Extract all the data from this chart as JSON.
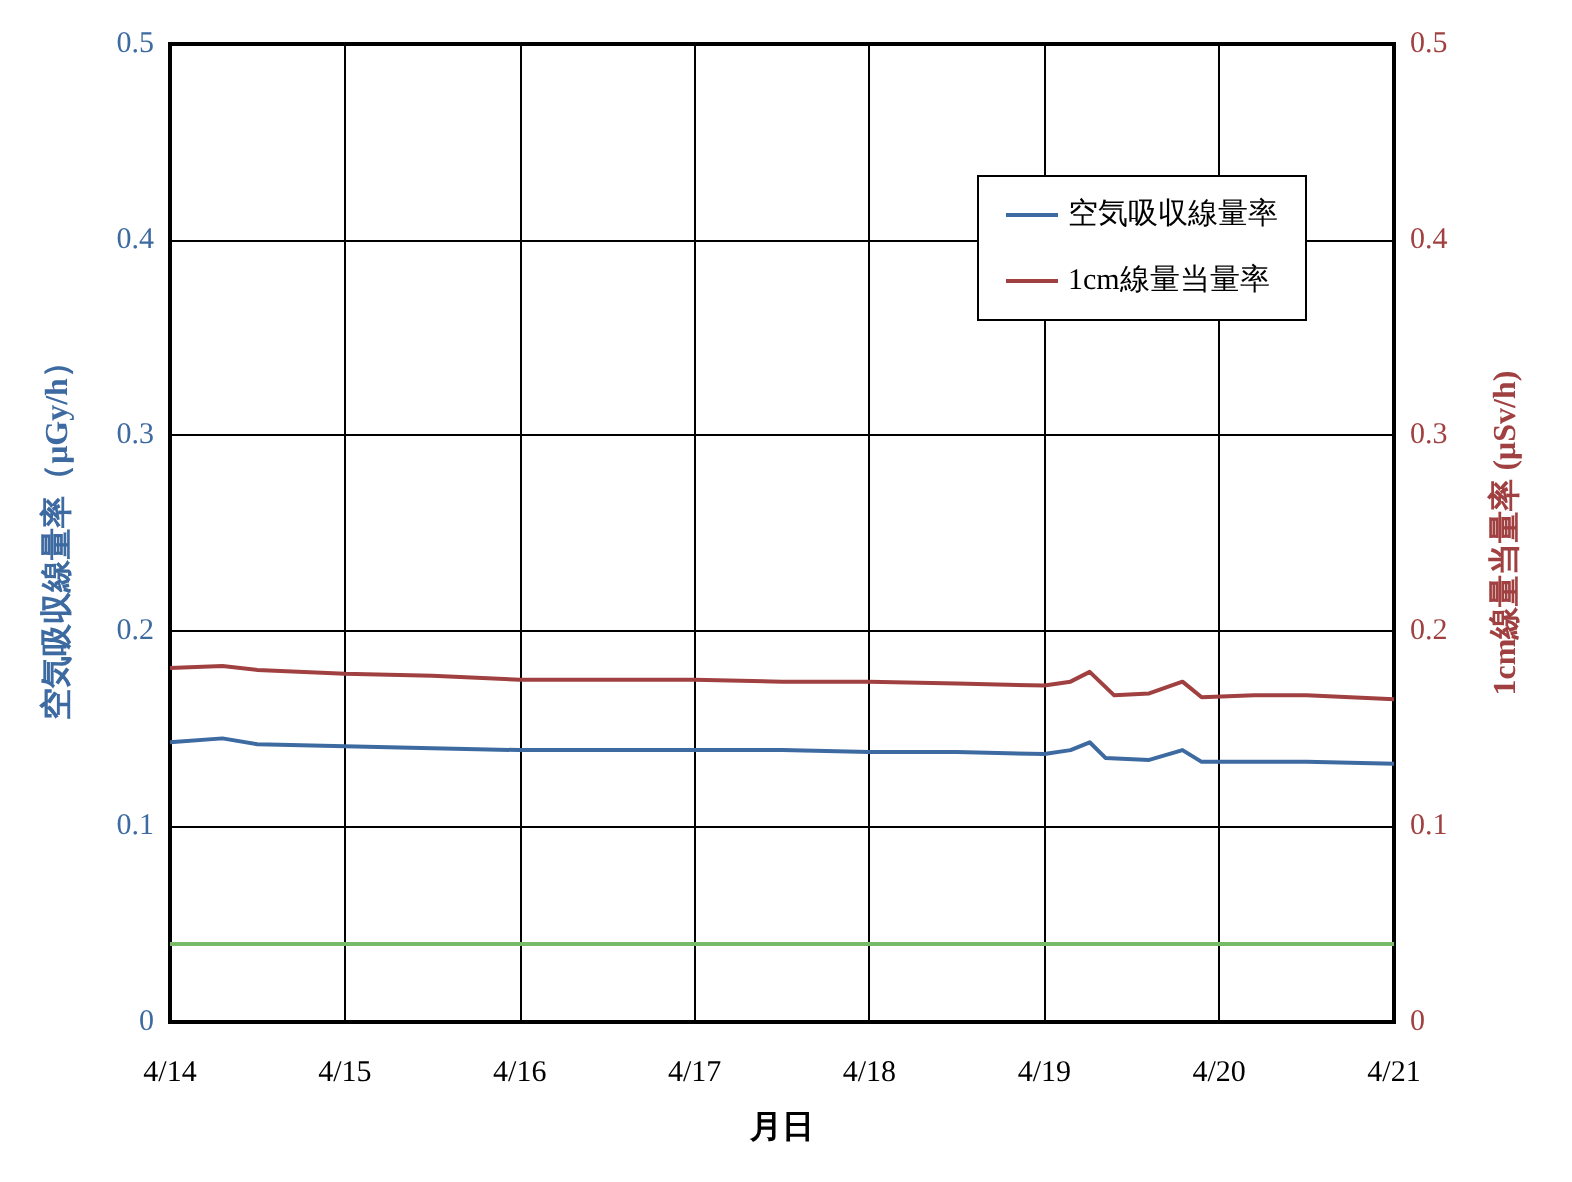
{
  "chart_data": {
    "type": "line",
    "xlabel": "月日",
    "ylabel": "空気吸収線量率（μGy/h）",
    "y2label": "1cm線量当量率 (μSv/h)",
    "xlim": [
      "--04-14",
      "--04-21"
    ],
    "xticks": [
      {
        "value": "--04-14",
        "label": "4/14"
      },
      {
        "value": "--04-15",
        "label": "4/15"
      },
      {
        "value": "--04-16",
        "label": "4/16"
      },
      {
        "value": "--04-17",
        "label": "4/17"
      },
      {
        "value": "--04-18",
        "label": "4/18"
      },
      {
        "value": "--04-19",
        "label": "4/19"
      },
      {
        "value": "--04-20",
        "label": "4/20"
      },
      {
        "value": "--04-21",
        "label": "4/21"
      }
    ],
    "ylim": [
      0,
      0.5
    ],
    "yticks": [
      0,
      0.1,
      0.2,
      0.3,
      0.4,
      0.5
    ],
    "y2lim": [
      0,
      0.5
    ],
    "y2ticks": [
      0,
      0.1,
      0.2,
      0.3,
      0.4,
      0.5
    ],
    "grid": true,
    "legend": "top right",
    "marker": "none",
    "line_style": "solid",
    "ref_lines": [
      {
        "axis": "y",
        "value": 0.04,
        "color": "#77bb66"
      }
    ],
    "series": [
      {
        "name": "空気吸収線量率",
        "color": "#3d6aa0",
        "x": [
          "--04-14T00:00",
          "--04-14T07:12",
          "--04-14T12:00",
          "--04-15T00:00",
          "--04-15T12:00",
          "--04-16T00:00",
          "--04-16T12:00",
          "--04-17T00:00",
          "--04-17T12:00",
          "--04-18T00:00",
          "--04-18T12:00",
          "--04-19T00:00",
          "--04-19T03:36",
          "--04-19T06:14",
          "--04-19T08:24",
          "--04-19T14:24",
          "--04-19T18:58",
          "--04-19T21:36",
          "--04-20T04:48",
          "--04-20T12:00",
          "--04-21T00:00"
        ],
        "values": [
          0.143,
          0.145,
          0.142,
          0.141,
          0.14,
          0.139,
          0.139,
          0.139,
          0.139,
          0.138,
          0.138,
          0.137,
          0.139,
          0.143,
          0.135,
          0.134,
          0.139,
          0.133,
          0.133,
          0.133,
          0.132
        ]
      },
      {
        "name": "1cm線量当量率",
        "color": "#a04040",
        "axis": "y2",
        "x": [
          "--04-14T00:00",
          "--04-14T07:12",
          "--04-14T12:00",
          "--04-15T00:00",
          "--04-15T12:00",
          "--04-16T00:00",
          "--04-16T12:00",
          "--04-17T00:00",
          "--04-17T12:00",
          "--04-18T00:00",
          "--04-18T12:00",
          "--04-19T00:00",
          "--04-19T03:36",
          "--04-19T06:14",
          "--04-19T09:36",
          "--04-19T14:24",
          "--04-19T18:58",
          "--04-19T21:36",
          "--04-20T04:48",
          "--04-20T12:00",
          "--04-21T00:00"
        ],
        "values": [
          0.181,
          0.182,
          0.18,
          0.178,
          0.177,
          0.175,
          0.175,
          0.175,
          0.174,
          0.174,
          0.173,
          0.172,
          0.174,
          0.179,
          0.167,
          0.168,
          0.174,
          0.166,
          0.167,
          0.167,
          0.165
        ]
      }
    ]
  }
}
